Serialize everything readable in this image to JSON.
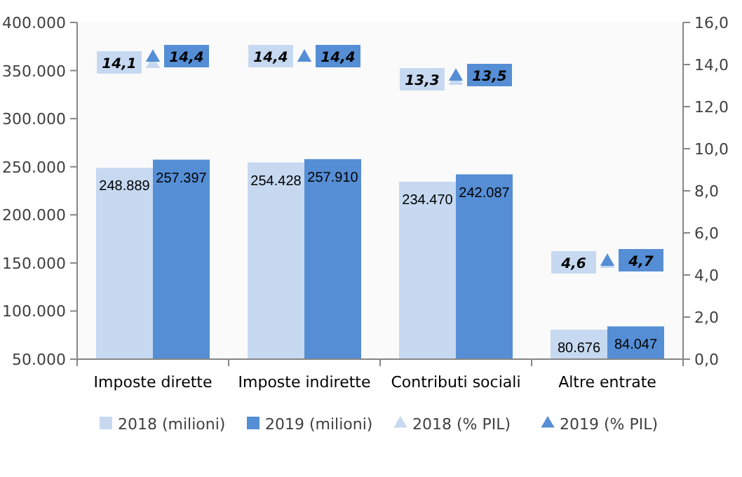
{
  "chart_data": {
    "type": "bar",
    "categories": [
      "Imposte dirette",
      "Imposte indirette",
      "Contributi sociali",
      "Altre entrate"
    ],
    "series": [
      {
        "name": "2018 (milioni)",
        "color": "#c6d9f1",
        "values": [
          248889,
          254428,
          234470,
          80676
        ],
        "value_labels": [
          "248.889",
          "254.428",
          "234.470",
          "80.676"
        ]
      },
      {
        "name": "2019 (milioni)",
        "color": "#558ed5",
        "values": [
          257397,
          257910,
          242087,
          84047
        ],
        "value_labels": [
          "257.397",
          "257.910",
          "242.087",
          "84.047"
        ]
      },
      {
        "name": "2018 (% PIL)",
        "type": "scatter",
        "axis": "y2",
        "color": "#c6d9f1",
        "values": [
          14.1,
          14.4,
          13.3,
          4.6
        ],
        "value_labels": [
          "14,1",
          "14,4",
          "13,3",
          "4,6"
        ]
      },
      {
        "name": "2019 (% PIL)",
        "type": "scatter",
        "axis": "y2",
        "color": "#558ed5",
        "values": [
          14.4,
          14.4,
          13.5,
          4.7
        ],
        "value_labels": [
          "14,4",
          "14,4",
          "13,5",
          "4,7"
        ]
      }
    ],
    "ylim": [
      50000,
      400000
    ],
    "yticks": [
      {
        "value": 50000,
        "label": "50.000"
      },
      {
        "value": 100000,
        "label": "100.000"
      },
      {
        "value": 150000,
        "label": "150.000"
      },
      {
        "value": 200000,
        "label": "200.000"
      },
      {
        "value": 250000,
        "label": "250.000"
      },
      {
        "value": 300000,
        "label": "300.000"
      },
      {
        "value": 350000,
        "label": "350.000"
      },
      {
        "value": 400000,
        "label": "400.000"
      }
    ],
    "y2lim": [
      0,
      16
    ],
    "y2ticks": [
      {
        "value": 0,
        "label": "0,0"
      },
      {
        "value": 2,
        "label": "2,0"
      },
      {
        "value": 4,
        "label": "4,0"
      },
      {
        "value": 6,
        "label": "6,0"
      },
      {
        "value": 8,
        "label": "8,0"
      },
      {
        "value": 10,
        "label": "10,0"
      },
      {
        "value": 12,
        "label": "12,0"
      },
      {
        "value": 14,
        "label": "14,0"
      },
      {
        "value": 16,
        "label": "16,0"
      }
    ],
    "grid": false,
    "legend": "bottom",
    "marker": "triangle"
  }
}
